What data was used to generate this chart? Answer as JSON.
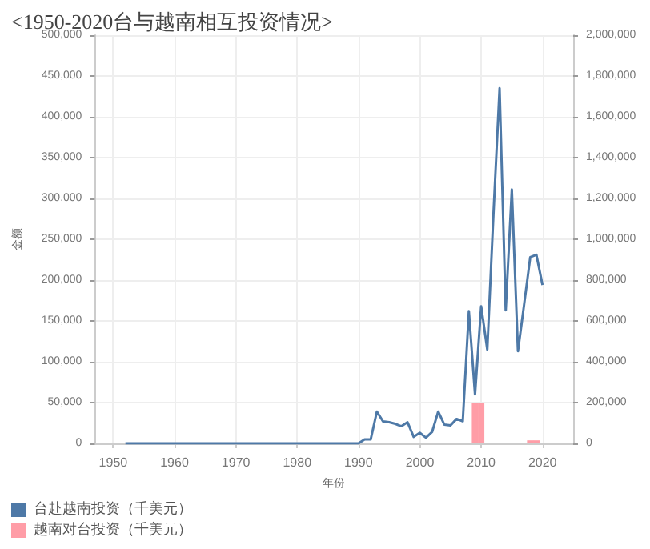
{
  "chart_data": {
    "type": "line",
    "title": "<1950-2020台与越南相互投资情况>",
    "xlabel": "年份",
    "ylabel": "金额",
    "xlim": [
      1947,
      2025
    ],
    "xticks": [
      1950,
      1960,
      1970,
      1980,
      1990,
      2000,
      2010,
      2020
    ],
    "ylim": [
      0,
      500000
    ],
    "yticks": [
      0,
      {
        "value": 50000,
        "label": "50,000"
      },
      {
        "value": 100000,
        "label": "100,000"
      },
      {
        "value": 150000,
        "label": "150,000"
      },
      {
        "value": 200000,
        "label": "200,000"
      },
      {
        "value": 250000,
        "label": "250,000"
      },
      {
        "value": 300000,
        "label": "300,000"
      },
      {
        "value": 350000,
        "label": "350,000"
      },
      {
        "value": 400000,
        "label": "400,000"
      },
      {
        "value": 450000,
        "label": "450,000"
      },
      {
        "value": 500000,
        "label": "500,000"
      }
    ],
    "y2lim": [
      0,
      2000000
    ],
    "y2ticks": [
      0,
      {
        "value": 200000,
        "label": "200,000"
      },
      {
        "value": 400000,
        "label": "400,000"
      },
      {
        "value": 600000,
        "label": "600,000"
      },
      {
        "value": 800000,
        "label": "800,000"
      },
      {
        "value": 1000000,
        "label": "1,000,000"
      },
      {
        "value": 1200000,
        "label": "1,200,000"
      },
      {
        "value": 1400000,
        "label": "1,400,000"
      },
      {
        "value": 1600000,
        "label": "1,600,000"
      },
      {
        "value": 1800000,
        "label": "1,800,000"
      },
      {
        "value": 2000000,
        "label": "2,000,000"
      }
    ],
    "grid": true,
    "legend": "bottom left",
    "marker": "none",
    "series": [
      {
        "name": "台赴越南投资（千美元）",
        "color": "#4e79a7",
        "x": [
          1952,
          1960,
          1970,
          1980,
          1989,
          1990,
          1991,
          1992,
          1993,
          1994,
          1995,
          1996,
          1997,
          1998,
          1999,
          2000,
          2001,
          2002,
          2003,
          2004,
          2005,
          2006,
          2007,
          2008,
          2009,
          2010,
          2011,
          2012,
          2013,
          2014,
          2015,
          2016,
          2017,
          2018,
          2019,
          2020
        ],
        "values": [
          0,
          0,
          0,
          0,
          0,
          0,
          5000,
          5000,
          39000,
          27000,
          26000,
          24000,
          21000,
          26000,
          8000,
          13000,
          7000,
          14000,
          39000,
          23000,
          22000,
          30000,
          27000,
          162000,
          60000,
          168000,
          115000,
          280000,
          435000,
          163000,
          311000,
          113000,
          170000,
          228000,
          231000,
          194000
        ]
      },
      {
        "name": "越南对台投资（千美元）",
        "type": "bar",
        "axis": "y2",
        "color": "#ff9da7",
        "x": [
          2009,
          2010,
          2018,
          2019
        ],
        "values": [
          200000,
          200000,
          15000,
          15000
        ]
      }
    ]
  }
}
